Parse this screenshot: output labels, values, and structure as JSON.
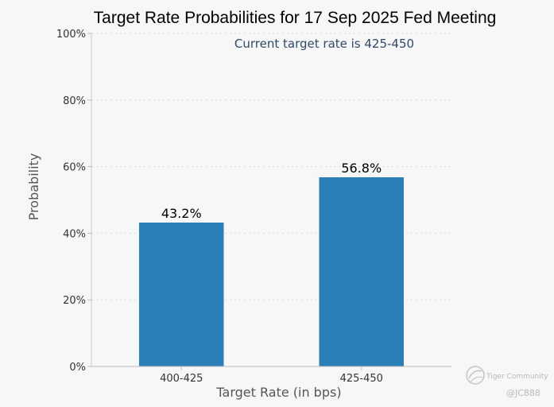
{
  "chart_data": {
    "type": "bar",
    "title": "Target Rate Probabilities for 17 Sep 2025 Fed Meeting",
    "annotation": "Current target rate is 425-450",
    "xlabel": "Target Rate (in bps)",
    "ylabel": "Probability",
    "categories": [
      "400-425",
      "425-450"
    ],
    "values": [
      43.2,
      56.8
    ],
    "data_labels": [
      "43.2%",
      "56.8%"
    ],
    "ylim": [
      0,
      100
    ],
    "yticks": [
      0,
      20,
      40,
      60,
      80,
      100
    ],
    "ytick_labels": [
      "0%",
      "20%",
      "40%",
      "60%",
      "80%",
      "100%"
    ],
    "bar_color": "#2a7fb8",
    "grid": "horizontal dotted",
    "legend": "none"
  },
  "watermark": {
    "brand": "Tiger Community",
    "handle": "@JC888"
  }
}
